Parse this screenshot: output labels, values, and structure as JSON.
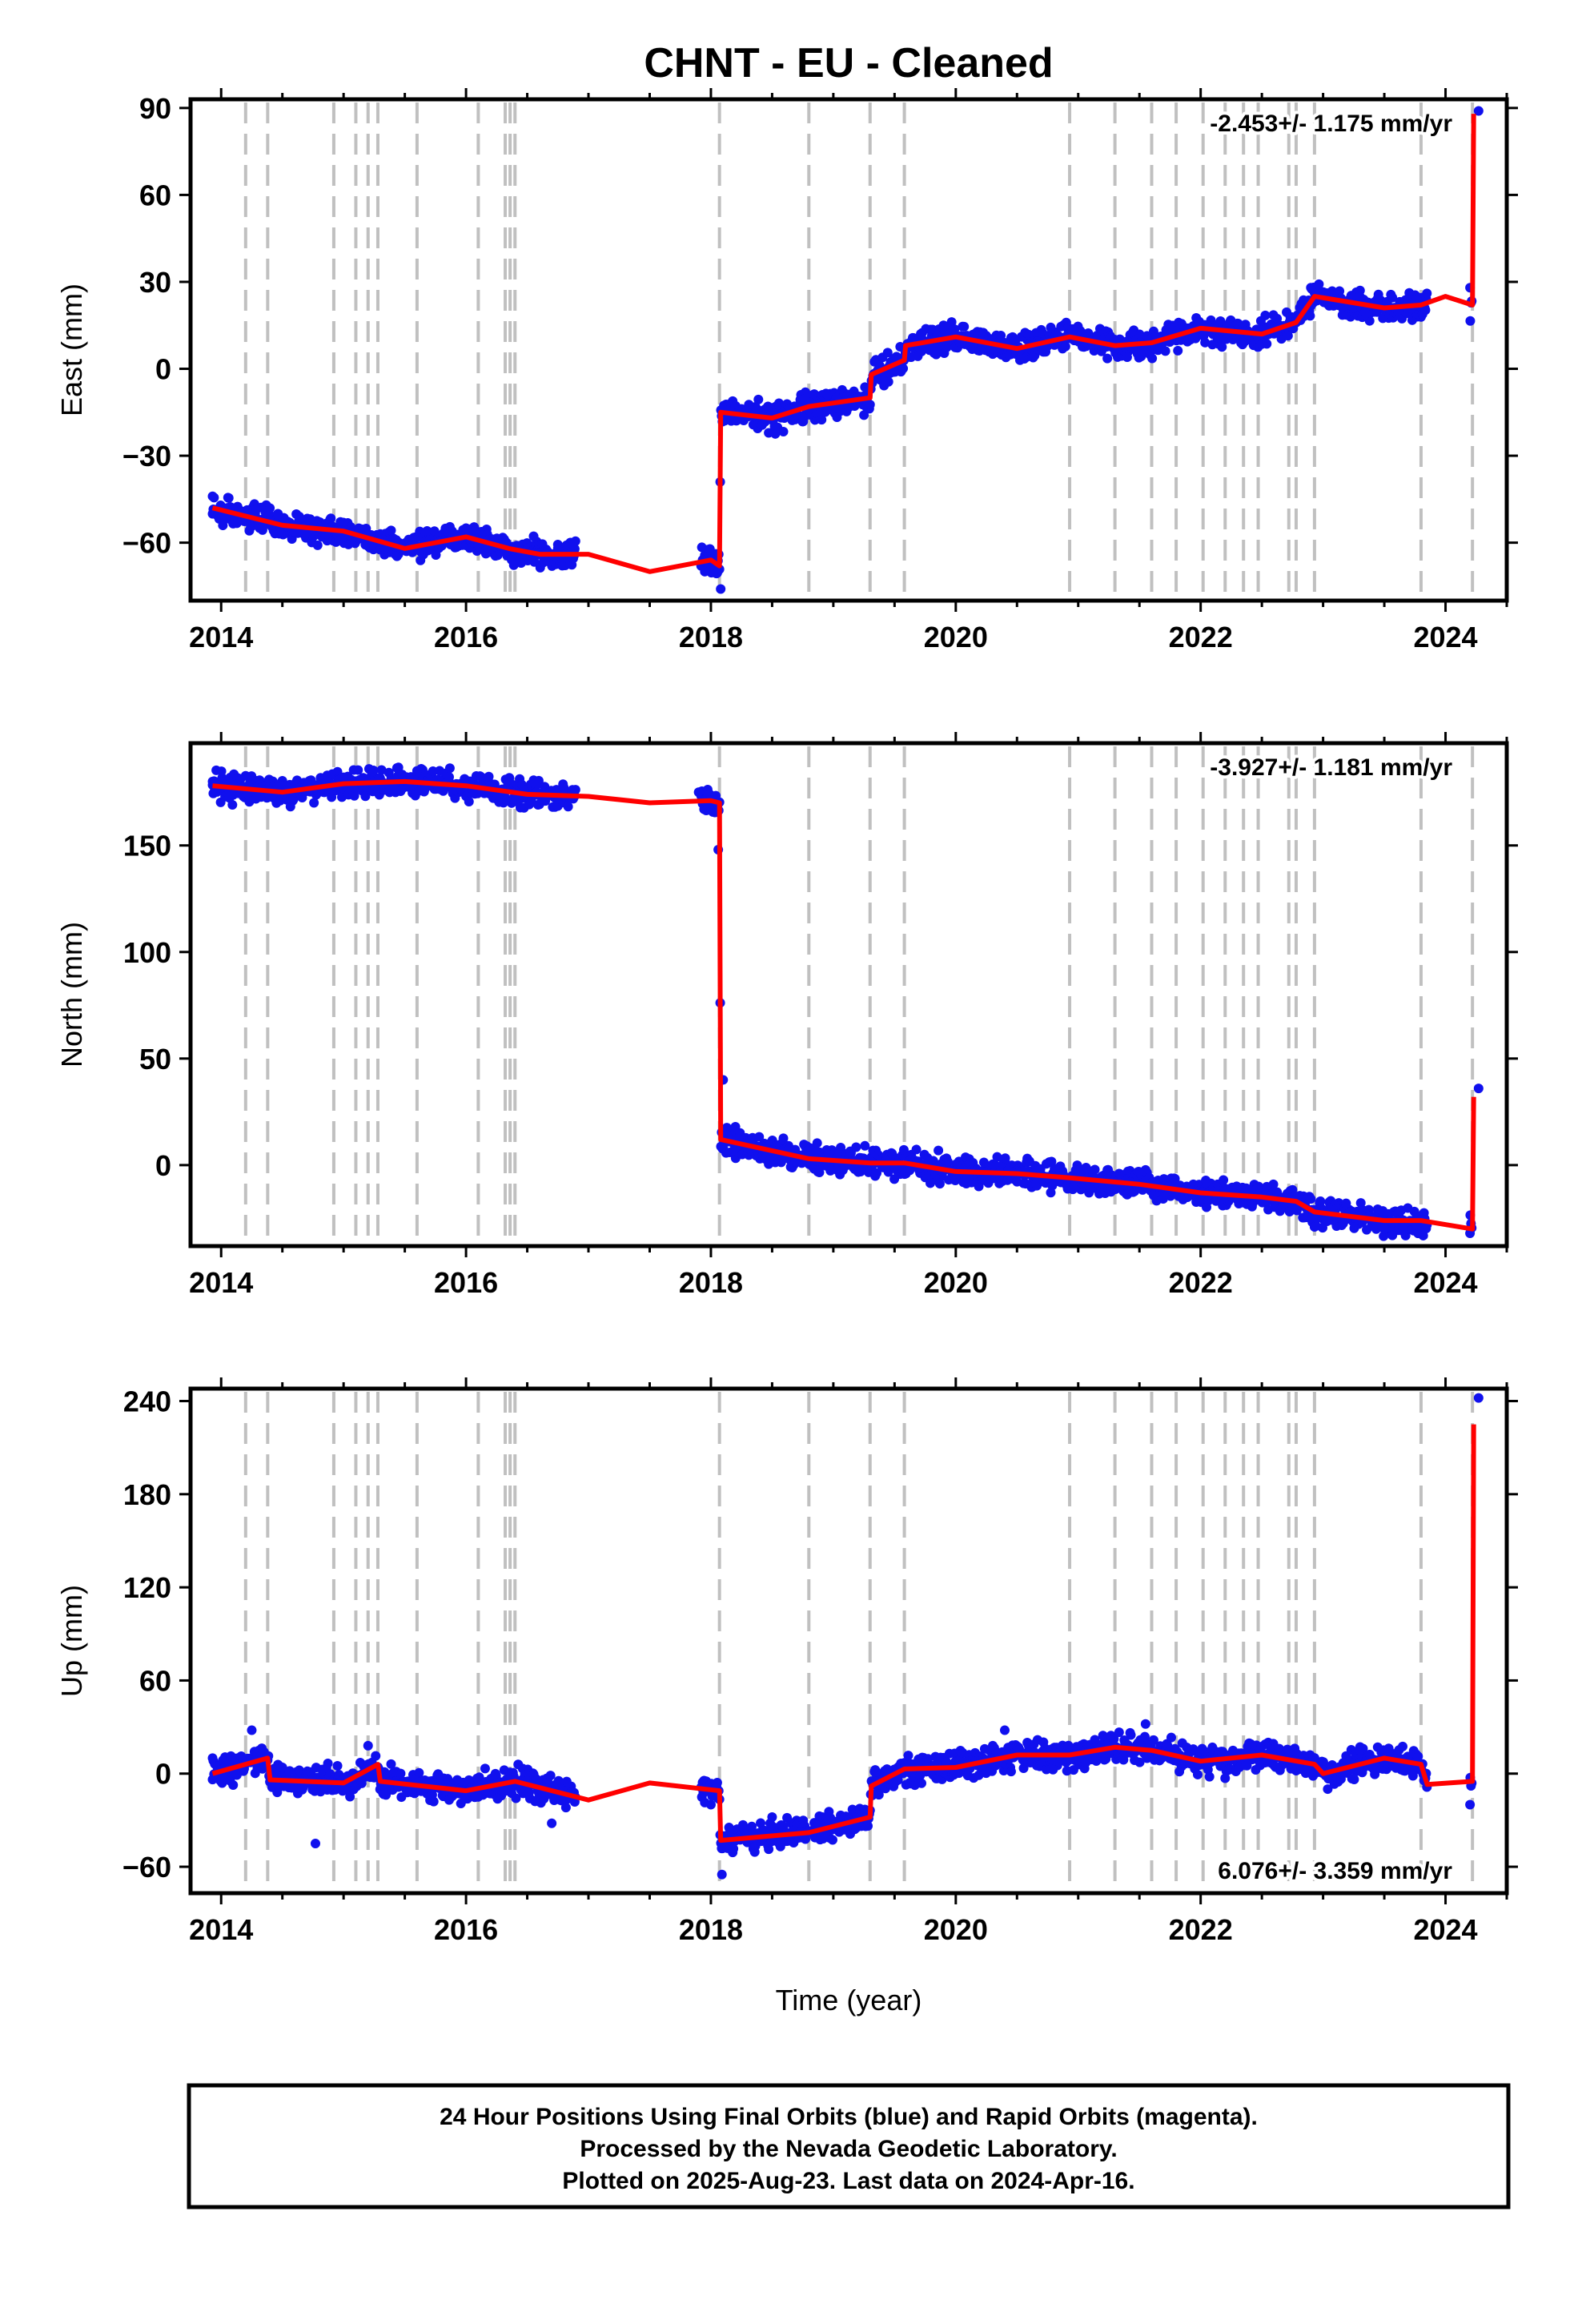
{
  "title": "CHNT  - EU - Cleaned",
  "xlabel": "Time (year)",
  "colors": {
    "points": "#1010ee",
    "model": "#ff0000",
    "steps": "#c0c0c0"
  },
  "footer": [
    "24 Hour Positions Using Final Orbits (blue) and Rapid Orbits (magenta).",
    "Processed by the Nevada Geodetic Laboratory.",
    "Plotted on 2025-Aug-23. Last data on 2024-Apr-16."
  ],
  "chart_data": [
    {
      "type": "scatter",
      "name": "East",
      "ylabel": "East (mm)",
      "rate_label": "-2.453+/- 1.175 mm/yr",
      "xlim": [
        2013.75,
        2024.5
      ],
      "ylim": [
        -80,
        93
      ],
      "xticks": [
        2014,
        2016,
        2018,
        2020,
        2022,
        2024
      ],
      "yticks": [
        -60,
        -30,
        0,
        30,
        60,
        90
      ],
      "ytick_labels": [
        "−60",
        "−30",
        "0",
        "30",
        "60",
        "90"
      ],
      "step_epochs": [
        2014.2,
        2014.38,
        2014.92,
        2015.1,
        2015.2,
        2015.28,
        2015.6,
        2016.1,
        2016.32,
        2016.36,
        2016.4,
        2018.07,
        2018.8,
        2019.3,
        2019.58,
        2020.93,
        2021.3,
        2021.6,
        2021.8,
        2022.02,
        2022.2,
        2022.35,
        2022.47,
        2022.72,
        2022.78,
        2022.93,
        2023.8,
        2024.22
      ],
      "model": [
        [
          2013.93,
          -48
        ],
        [
          2014.5,
          -54
        ],
        [
          2015.0,
          -56
        ],
        [
          2015.5,
          -62
        ],
        [
          2016.0,
          -58
        ],
        [
          2016.35,
          -62
        ],
        [
          2016.6,
          -64
        ],
        [
          2017.0,
          -64
        ],
        [
          2017.5,
          -70
        ],
        [
          2018.0,
          -66
        ],
        [
          2018.07,
          -68
        ],
        [
          2018.08,
          -15
        ],
        [
          2018.5,
          -17
        ],
        [
          2018.8,
          -13
        ],
        [
          2019.3,
          -10
        ],
        [
          2019.31,
          -2
        ],
        [
          2019.58,
          3
        ],
        [
          2019.59,
          8
        ],
        [
          2020.0,
          11
        ],
        [
          2020.5,
          7
        ],
        [
          2020.93,
          11
        ],
        [
          2021.3,
          8
        ],
        [
          2021.6,
          9
        ],
        [
          2022.0,
          14
        ],
        [
          2022.5,
          12
        ],
        [
          2022.78,
          16
        ],
        [
          2022.93,
          25
        ],
        [
          2023.5,
          21
        ],
        [
          2023.8,
          22
        ],
        [
          2024.0,
          25
        ],
        [
          2024.22,
          22
        ],
        [
          2024.23,
          88
        ]
      ],
      "points": [
        [
          2013.93,
          -44
        ],
        [
          2014.3,
          -52
        ],
        [
          2014.8,
          -55
        ],
        [
          2015.3,
          -57
        ],
        [
          2015.7,
          -62
        ],
        [
          2016.0,
          -55
        ],
        [
          2016.45,
          -67
        ],
        [
          2016.75,
          -62
        ],
        [
          2017.95,
          -70
        ],
        [
          2018.08,
          -76
        ],
        [
          2018.1,
          -14
        ],
        [
          2018.6,
          -17
        ],
        [
          2018.95,
          -9
        ],
        [
          2019.25,
          -16
        ],
        [
          2019.5,
          0
        ],
        [
          2019.9,
          15
        ],
        [
          2020.4,
          9
        ],
        [
          2020.95,
          13
        ],
        [
          2021.4,
          4
        ],
        [
          2021.9,
          14
        ],
        [
          2022.45,
          12
        ],
        [
          2022.9,
          28
        ],
        [
          2023.3,
          25
        ],
        [
          2023.7,
          20
        ],
        [
          2024.2,
          28
        ],
        [
          2024.27,
          89
        ]
      ]
    },
    {
      "type": "scatter",
      "name": "North",
      "ylabel": "North (mm)",
      "rate_label": "-3.927+/- 1.181 mm/yr",
      "xlim": [
        2013.75,
        2024.5
      ],
      "ylim": [
        -38,
        198
      ],
      "xticks": [
        2014,
        2016,
        2018,
        2020,
        2022,
        2024
      ],
      "yticks": [
        0,
        50,
        100,
        150
      ],
      "ytick_labels": [
        "0",
        "50",
        "100",
        "150"
      ],
      "step_epochs": [
        2014.2,
        2014.38,
        2014.92,
        2015.1,
        2015.2,
        2015.28,
        2015.6,
        2016.1,
        2016.32,
        2016.36,
        2016.4,
        2018.07,
        2018.8,
        2019.3,
        2019.58,
        2020.93,
        2021.3,
        2021.6,
        2021.8,
        2022.02,
        2022.2,
        2022.35,
        2022.47,
        2022.72,
        2022.78,
        2022.93,
        2023.8,
        2024.22
      ],
      "model": [
        [
          2013.93,
          178
        ],
        [
          2014.5,
          175
        ],
        [
          2015.0,
          179
        ],
        [
          2015.5,
          180
        ],
        [
          2016.0,
          178
        ],
        [
          2016.5,
          174
        ],
        [
          2017.0,
          173
        ],
        [
          2017.5,
          170
        ],
        [
          2018.0,
          171
        ],
        [
          2018.07,
          170
        ],
        [
          2018.08,
          12
        ],
        [
          2018.8,
          3
        ],
        [
          2019.3,
          1
        ],
        [
          2019.58,
          1
        ],
        [
          2020.0,
          -3
        ],
        [
          2020.5,
          -4
        ],
        [
          2020.93,
          -6
        ],
        [
          2021.5,
          -9
        ],
        [
          2022.0,
          -13
        ],
        [
          2022.5,
          -15
        ],
        [
          2022.78,
          -17
        ],
        [
          2022.93,
          -22
        ],
        [
          2023.5,
          -26
        ],
        [
          2023.8,
          -26
        ],
        [
          2024.22,
          -30
        ],
        [
          2024.23,
          32
        ]
      ],
      "points": [
        [
          2013.93,
          180
        ],
        [
          2014.5,
          178
        ],
        [
          2015.0,
          182
        ],
        [
          2015.6,
          185
        ],
        [
          2016.1,
          178
        ],
        [
          2016.7,
          174
        ],
        [
          2017.9,
          175
        ],
        [
          2018.06,
          148
        ],
        [
          2018.1,
          40
        ],
        [
          2018.2,
          18
        ],
        [
          2018.8,
          5
        ],
        [
          2019.5,
          -1
        ],
        [
          2020.1,
          -6
        ],
        [
          2020.8,
          -7
        ],
        [
          2021.6,
          -10
        ],
        [
          2022.3,
          -16
        ],
        [
          2022.95,
          -25
        ],
        [
          2023.5,
          -30
        ],
        [
          2024.2,
          -32
        ],
        [
          2024.27,
          36
        ]
      ]
    },
    {
      "type": "scatter",
      "name": "Up",
      "ylabel": "Up (mm)",
      "rate_label": "6.076+/- 3.359 mm/yr",
      "xlim": [
        2013.75,
        2024.5
      ],
      "ylim": [
        -77,
        248
      ],
      "xticks": [
        2014,
        2016,
        2018,
        2020,
        2022,
        2024
      ],
      "yticks": [
        -60,
        0,
        60,
        120,
        180,
        240
      ],
      "ytick_labels": [
        "−60",
        "0",
        "60",
        "120",
        "180",
        "240"
      ],
      "step_epochs": [
        2014.2,
        2014.38,
        2014.92,
        2015.1,
        2015.2,
        2015.28,
        2015.6,
        2016.1,
        2016.32,
        2016.36,
        2016.4,
        2018.07,
        2018.8,
        2019.3,
        2019.58,
        2020.93,
        2021.3,
        2021.6,
        2021.8,
        2022.02,
        2022.2,
        2022.35,
        2022.47,
        2022.72,
        2022.78,
        2022.93,
        2023.8,
        2024.22
      ],
      "model": [
        [
          2013.93,
          0
        ],
        [
          2014.38,
          10
        ],
        [
          2014.4,
          -4
        ],
        [
          2015.0,
          -6
        ],
        [
          2015.28,
          6
        ],
        [
          2015.3,
          -5
        ],
        [
          2016.0,
          -11
        ],
        [
          2016.4,
          -5
        ],
        [
          2017.0,
          -17
        ],
        [
          2017.5,
          -6
        ],
        [
          2018.07,
          -11
        ],
        [
          2018.08,
          -43
        ],
        [
          2018.8,
          -38
        ],
        [
          2019.3,
          -28
        ],
        [
          2019.31,
          -8
        ],
        [
          2019.58,
          3
        ],
        [
          2020.0,
          4
        ],
        [
          2020.5,
          12
        ],
        [
          2020.93,
          12
        ],
        [
          2021.3,
          17
        ],
        [
          2021.6,
          15
        ],
        [
          2022.0,
          8
        ],
        [
          2022.5,
          12
        ],
        [
          2022.93,
          6
        ],
        [
          2023.0,
          0
        ],
        [
          2023.5,
          10
        ],
        [
          2023.8,
          6
        ],
        [
          2023.85,
          -7
        ],
        [
          2024.22,
          -5
        ],
        [
          2024.23,
          225
        ]
      ],
      "points": [
        [
          2013.93,
          10
        ],
        [
          2014.25,
          28
        ],
        [
          2014.5,
          4
        ],
        [
          2014.77,
          -45
        ],
        [
          2015.2,
          18
        ],
        [
          2015.7,
          -5
        ],
        [
          2016.1,
          -15
        ],
        [
          2016.7,
          -32
        ],
        [
          2018.0,
          -20
        ],
        [
          2018.09,
          -65
        ],
        [
          2018.5,
          -28
        ],
        [
          2018.9,
          -42
        ],
        [
          2019.35,
          -5
        ],
        [
          2019.7,
          8
        ],
        [
          2020.4,
          28
        ],
        [
          2021.0,
          10
        ],
        [
          2021.55,
          32
        ],
        [
          2022.2,
          -3
        ],
        [
          2022.8,
          6
        ],
        [
          2023.3,
          15
        ],
        [
          2023.7,
          3
        ],
        [
          2024.2,
          -20
        ],
        [
          2024.27,
          242
        ]
      ]
    }
  ]
}
